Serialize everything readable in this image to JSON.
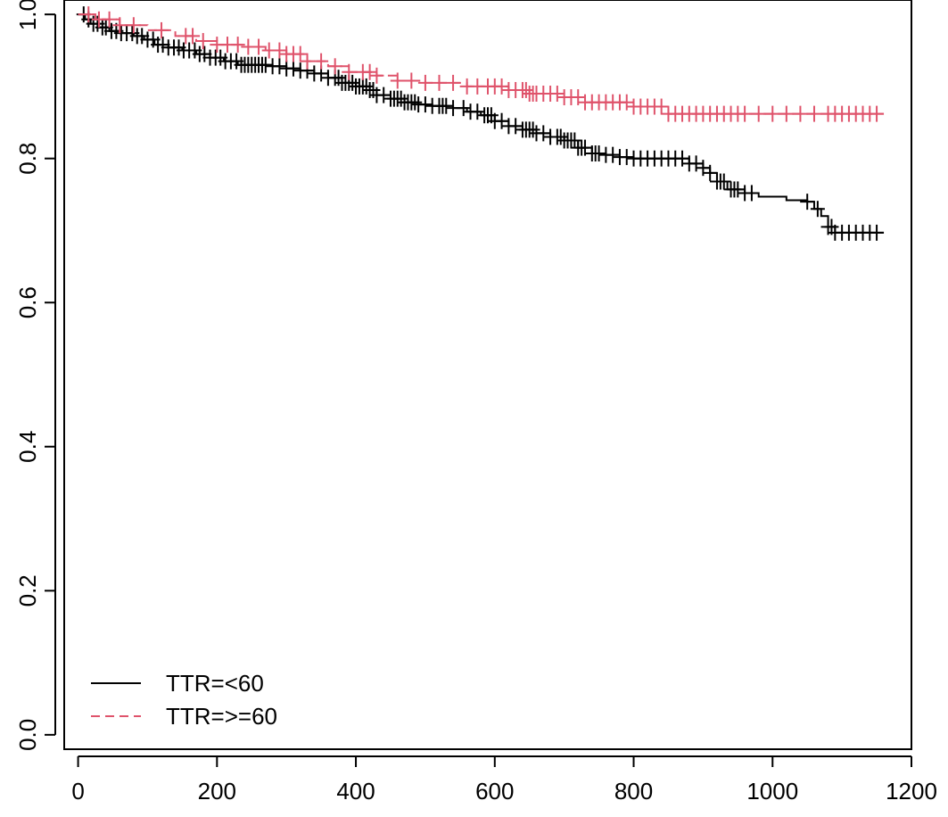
{
  "chart_data": {
    "type": "line",
    "title": "",
    "xlabel": "",
    "ylabel": "",
    "xlim": [
      -20,
      1200
    ],
    "ylim": [
      -0.02,
      1.02
    ],
    "x_ticks": [
      0,
      200,
      400,
      600,
      800,
      1000,
      1200
    ],
    "y_ticks": [
      0.0,
      0.2,
      0.4,
      0.6,
      0.8,
      1.0
    ],
    "x_tick_labels": [
      "0",
      "200",
      "400",
      "600",
      "800",
      "1000",
      "1200"
    ],
    "y_tick_labels": [
      "0.0",
      "0.2",
      "0.4",
      "0.6",
      "0.8",
      "1.0"
    ],
    "grid": false,
    "legend_position": "bottom-left",
    "series": [
      {
        "name": "TTR=<60",
        "color": "#000000",
        "line_style": "solid",
        "steps": [
          [
            0,
            1.0
          ],
          [
            10,
            0.993
          ],
          [
            18,
            0.987
          ],
          [
            30,
            0.982
          ],
          [
            45,
            0.977
          ],
          [
            60,
            0.974
          ],
          [
            80,
            0.97
          ],
          [
            95,
            0.965
          ],
          [
            110,
            0.958
          ],
          [
            130,
            0.954
          ],
          [
            150,
            0.95
          ],
          [
            170,
            0.945
          ],
          [
            190,
            0.94
          ],
          [
            210,
            0.935
          ],
          [
            230,
            0.93
          ],
          [
            260,
            0.93
          ],
          [
            280,
            0.928
          ],
          [
            300,
            0.925
          ],
          [
            320,
            0.922
          ],
          [
            340,
            0.918
          ],
          [
            360,
            0.912
          ],
          [
            380,
            0.905
          ],
          [
            400,
            0.9
          ],
          [
            420,
            0.895
          ],
          [
            430,
            0.888
          ],
          [
            450,
            0.883
          ],
          [
            470,
            0.878
          ],
          [
            490,
            0.875
          ],
          [
            510,
            0.873
          ],
          [
            540,
            0.87
          ],
          [
            560,
            0.865
          ],
          [
            580,
            0.86
          ],
          [
            600,
            0.852
          ],
          [
            620,
            0.845
          ],
          [
            640,
            0.84
          ],
          [
            660,
            0.835
          ],
          [
            680,
            0.83
          ],
          [
            700,
            0.825
          ],
          [
            720,
            0.815
          ],
          [
            740,
            0.807
          ],
          [
            760,
            0.805
          ],
          [
            780,
            0.802
          ],
          [
            800,
            0.8
          ],
          [
            820,
            0.8
          ],
          [
            850,
            0.8
          ],
          [
            870,
            0.8
          ],
          [
            880,
            0.793
          ],
          [
            900,
            0.787
          ],
          [
            910,
            0.78
          ],
          [
            920,
            0.768
          ],
          [
            935,
            0.757
          ],
          [
            960,
            0.752
          ],
          [
            980,
            0.747
          ],
          [
            1020,
            0.742
          ],
          [
            1050,
            0.74
          ],
          [
            1060,
            0.73
          ],
          [
            1070,
            0.72
          ],
          [
            1080,
            0.705
          ],
          [
            1090,
            0.697
          ],
          [
            1160,
            0.697
          ]
        ],
        "censor_x": [
          8,
          15,
          22,
          28,
          35,
          40,
          48,
          55,
          62,
          70,
          78,
          85,
          92,
          100,
          108,
          115,
          122,
          130,
          138,
          145,
          152,
          160,
          168,
          175,
          182,
          190,
          198,
          205,
          212,
          220,
          228,
          235,
          240,
          245,
          250,
          255,
          260,
          265,
          270,
          280,
          290,
          300,
          310,
          320,
          330,
          340,
          350,
          360,
          370,
          375,
          380,
          385,
          390,
          395,
          400,
          405,
          410,
          415,
          420,
          425,
          430,
          440,
          450,
          455,
          460,
          465,
          470,
          475,
          480,
          485,
          490,
          500,
          510,
          520,
          525,
          530,
          540,
          555,
          565,
          575,
          585,
          590,
          595,
          600,
          610,
          620,
          630,
          640,
          645,
          650,
          655,
          660,
          670,
          680,
          690,
          695,
          700,
          705,
          710,
          715,
          720,
          725,
          730,
          740,
          745,
          750,
          760,
          770,
          780,
          790,
          800,
          810,
          820,
          830,
          840,
          850,
          860,
          870,
          880,
          890,
          900,
          910,
          920,
          925,
          930,
          940,
          945,
          950,
          960,
          970,
          1050,
          1065,
          1080,
          1085,
          1090,
          1100,
          1110,
          1120,
          1130,
          1140,
          1150
        ]
      },
      {
        "name": "TTR=>=60",
        "color": "#DF536B",
        "line_style": "dashed",
        "steps": [
          [
            0,
            1.0
          ],
          [
            25,
            0.993
          ],
          [
            60,
            0.985
          ],
          [
            100,
            0.978
          ],
          [
            140,
            0.97
          ],
          [
            170,
            0.963
          ],
          [
            200,
            0.958
          ],
          [
            240,
            0.955
          ],
          [
            270,
            0.95
          ],
          [
            300,
            0.945
          ],
          [
            330,
            0.935
          ],
          [
            360,
            0.928
          ],
          [
            390,
            0.92
          ],
          [
            430,
            0.915
          ],
          [
            460,
            0.908
          ],
          [
            500,
            0.905
          ],
          [
            560,
            0.9
          ],
          [
            620,
            0.895
          ],
          [
            650,
            0.89
          ],
          [
            700,
            0.885
          ],
          [
            730,
            0.878
          ],
          [
            800,
            0.872
          ],
          [
            850,
            0.862
          ],
          [
            1160,
            0.862
          ]
        ],
        "censor_x": [
          15,
          30,
          45,
          60,
          80,
          120,
          155,
          165,
          180,
          200,
          215,
          230,
          245,
          260,
          275,
          290,
          300,
          310,
          320,
          330,
          350,
          370,
          390,
          410,
          420,
          430,
          460,
          480,
          500,
          520,
          540,
          560,
          575,
          590,
          600,
          610,
          620,
          630,
          640,
          645,
          650,
          655,
          660,
          670,
          680,
          690,
          700,
          710,
          720,
          730,
          740,
          750,
          760,
          770,
          780,
          790,
          800,
          810,
          820,
          830,
          840,
          850,
          860,
          870,
          880,
          890,
          900,
          910,
          920,
          930,
          940,
          950,
          960,
          980,
          1000,
          1020,
          1040,
          1060,
          1080,
          1090,
          1100,
          1110,
          1120,
          1130,
          1140,
          1150
        ]
      }
    ]
  }
}
